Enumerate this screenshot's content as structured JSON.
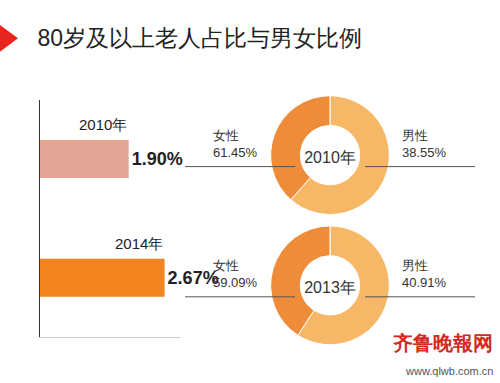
{
  "chart_data": [
    {
      "type": "bar",
      "title": "80岁及以上老人占比与男女比例",
      "orientation": "horizontal",
      "categories": [
        "2010年",
        "2014年"
      ],
      "values": [
        1.9,
        2.67
      ],
      "value_labels": [
        "1.90%",
        "2.67%"
      ],
      "colors": [
        "#e3a596",
        "#f28520"
      ],
      "data_labels": true,
      "tick_labels": false,
      "xlim": [
        0,
        3
      ],
      "annotations": [
        "齐鲁晚報网",
        "www.qlwb.com.cn"
      ]
    },
    {
      "type": "pie",
      "title": "2010年",
      "categories": [
        "女性",
        "男性"
      ],
      "values": [
        61.45,
        38.55
      ],
      "value_labels": [
        "61.45%",
        "38.55%"
      ],
      "colors": [
        "#f6b766",
        "#ee8c3a"
      ],
      "data_labels": true
    },
    {
      "type": "pie",
      "title": "2013年",
      "categories": [
        "女性",
        "男性"
      ],
      "values": [
        59.09,
        40.91
      ],
      "value_labels": [
        "59.09%",
        "40.91%"
      ],
      "colors": [
        "#f6b766",
        "#ee8c3a"
      ],
      "data_labels": true
    }
  ]
}
